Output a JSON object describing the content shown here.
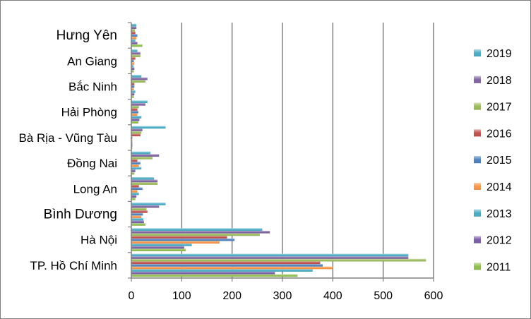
{
  "chart_data": {
    "type": "bar",
    "orientation": "horizontal",
    "categories": [
      "TP. Hồ Chí Minh",
      "Hà Nội",
      "Bình Dương",
      "Long An",
      "Đồng Nai",
      "Bà Rịa - Vũng Tàu",
      "Hải Phòng",
      "Bắc Ninh",
      "An Giang",
      "Hưng Yên"
    ],
    "emphasized_categories": [
      "Bình Dương",
      "Hưng Yên"
    ],
    "series": [
      {
        "name": "2011",
        "color": "#8fbf4f",
        "values": [
          330,
          108,
          28,
          8,
          6,
          2,
          14,
          5,
          5,
          22
        ]
      },
      {
        "name": "2012",
        "color": "#7a5ea8",
        "values": [
          285,
          105,
          25,
          10,
          8,
          2,
          16,
          6,
          6,
          12
        ]
      },
      {
        "name": "2013",
        "color": "#4bacc6",
        "values": [
          360,
          120,
          24,
          15,
          20,
          2,
          20,
          8,
          4,
          8
        ]
      },
      {
        "name": "2014",
        "color": "#f79646",
        "values": [
          400,
          175,
          20,
          12,
          15,
          2,
          12,
          5,
          6,
          10
        ]
      },
      {
        "name": "2015",
        "color": "#4f81bd",
        "values": [
          380,
          205,
          23,
          22,
          18,
          2,
          14,
          6,
          5,
          12
        ]
      },
      {
        "name": "2016",
        "color": "#c0504d",
        "values": [
          375,
          190,
          32,
          15,
          12,
          18,
          12,
          6,
          8,
          8
        ]
      },
      {
        "name": "2017",
        "color": "#9bbb59",
        "values": [
          585,
          255,
          30,
          52,
          42,
          20,
          15,
          28,
          18,
          7
        ]
      },
      {
        "name": "2018",
        "color": "#8064a2",
        "values": [
          550,
          275,
          55,
          52,
          55,
          22,
          28,
          32,
          18,
          10
        ]
      },
      {
        "name": "2019",
        "color": "#4bacc6",
        "values": [
          550,
          260,
          68,
          45,
          38,
          68,
          32,
          20,
          12,
          10
        ]
      }
    ],
    "legend_order": [
      "2019",
      "2018",
      "2017",
      "2016",
      "2015",
      "2014",
      "2013",
      "2012",
      "2011"
    ],
    "legend_position": "right",
    "xlim": [
      0,
      600
    ],
    "xticks": [
      0,
      100,
      200,
      300,
      400,
      500,
      600
    ],
    "gridlines": "vertical",
    "title": "",
    "xlabel": "",
    "ylabel": ""
  }
}
